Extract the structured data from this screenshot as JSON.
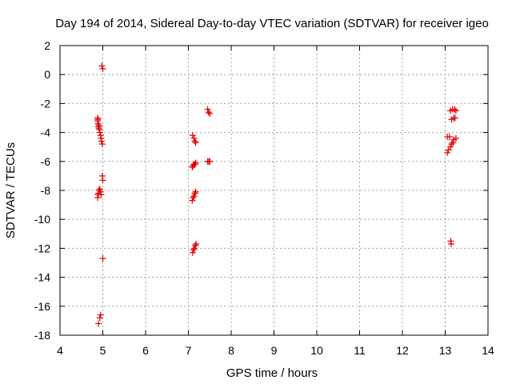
{
  "chart_data": {
    "type": "scatter",
    "title": "Day 194 of 2014, Sidereal Day-to-day VTEC variation (SDTVAR) for receiver igeo",
    "xlabel": "GPS time / hours",
    "ylabel": "SDTVAR / TECUs",
    "xlim": [
      4,
      14
    ],
    "ylim": [
      -18,
      2
    ],
    "xticks": [
      4,
      5,
      6,
      7,
      8,
      9,
      10,
      11,
      12,
      13,
      14
    ],
    "yticks": [
      2,
      0,
      -2,
      -4,
      -6,
      -8,
      -10,
      -12,
      -14,
      -16,
      -18
    ],
    "grid": true,
    "marker": "plus",
    "color": "#e00000",
    "series": [
      {
        "name": "SDTVAR",
        "points": [
          [
            4.98,
            0.6
          ],
          [
            5.0,
            0.4
          ],
          [
            4.88,
            -3.0
          ],
          [
            4.88,
            -3.2
          ],
          [
            4.89,
            -3.4
          ],
          [
            4.9,
            -3.6
          ],
          [
            4.91,
            -3.7
          ],
          [
            4.92,
            -3.8
          ],
          [
            4.93,
            -4.0
          ],
          [
            4.95,
            -4.2
          ],
          [
            4.96,
            -4.4
          ],
          [
            4.97,
            -4.6
          ],
          [
            4.99,
            -4.8
          ],
          [
            4.89,
            -3.1
          ],
          [
            4.91,
            -3.5
          ],
          [
            4.99,
            -7.0
          ],
          [
            5.0,
            -7.3
          ],
          [
            4.88,
            -8.5
          ],
          [
            4.89,
            -8.3
          ],
          [
            4.9,
            -8.2
          ],
          [
            4.91,
            -8.0
          ],
          [
            4.93,
            -7.9
          ],
          [
            4.95,
            -8.1
          ],
          [
            4.96,
            -8.3
          ],
          [
            5.0,
            -12.7
          ],
          [
            4.95,
            -16.6
          ],
          [
            4.93,
            -16.8
          ],
          [
            4.9,
            -17.2
          ],
          [
            7.1,
            -4.2
          ],
          [
            7.13,
            -4.4
          ],
          [
            7.15,
            -4.6
          ],
          [
            7.17,
            -4.7
          ],
          [
            7.09,
            -6.4
          ],
          [
            7.11,
            -6.3
          ],
          [
            7.13,
            -6.2
          ],
          [
            7.15,
            -6.2
          ],
          [
            7.17,
            -6.1
          ],
          [
            7.09,
            -8.7
          ],
          [
            7.11,
            -8.5
          ],
          [
            7.13,
            -8.4
          ],
          [
            7.15,
            -8.2
          ],
          [
            7.17,
            -8.1
          ],
          [
            7.1,
            -12.3
          ],
          [
            7.12,
            -12.1
          ],
          [
            7.14,
            -12.0
          ],
          [
            7.16,
            -11.8
          ],
          [
            7.18,
            -11.7
          ],
          [
            7.45,
            -2.4
          ],
          [
            7.47,
            -2.6
          ],
          [
            7.5,
            -2.7
          ],
          [
            7.45,
            -6.0
          ],
          [
            7.48,
            -6.0
          ],
          [
            7.5,
            -6.0
          ],
          [
            13.12,
            -2.5
          ],
          [
            13.17,
            -2.4
          ],
          [
            13.22,
            -2.4
          ],
          [
            13.25,
            -2.5
          ],
          [
            13.15,
            -3.1
          ],
          [
            13.2,
            -3.0
          ],
          [
            13.23,
            -3.0
          ],
          [
            13.05,
            -4.3
          ],
          [
            13.1,
            -4.3
          ],
          [
            13.2,
            -4.5
          ],
          [
            13.25,
            -4.4
          ],
          [
            13.05,
            -5.4
          ],
          [
            13.08,
            -5.2
          ],
          [
            13.12,
            -5.0
          ],
          [
            13.15,
            -4.8
          ],
          [
            13.18,
            -4.7
          ],
          [
            13.13,
            -11.5
          ],
          [
            13.14,
            -11.7
          ]
        ]
      }
    ]
  }
}
